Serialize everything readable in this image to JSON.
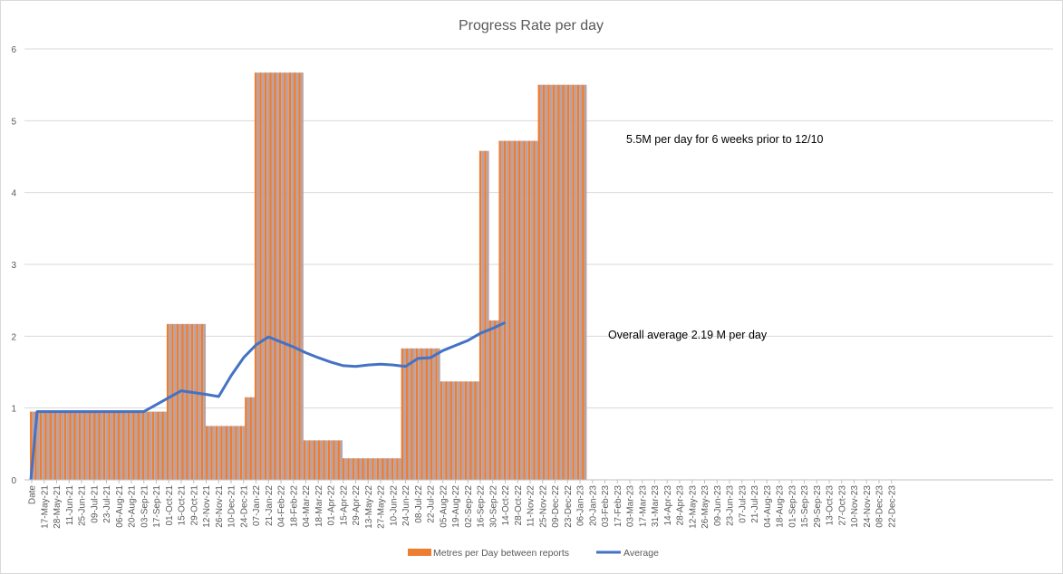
{
  "chart_data": {
    "type": "bar",
    "title": "Progress Rate per day",
    "xlabel": "",
    "ylabel": "",
    "ylim": [
      0,
      6
    ],
    "yticks": [
      0,
      1,
      2,
      3,
      4,
      5,
      6
    ],
    "grid": true,
    "legend_position": "bottom",
    "x_tick_labels": [
      "Date",
      "17-May-21",
      "28-May-21",
      "11-Jun-21",
      "25-Jun-21",
      "09-Jul-21",
      "23-Jul-21",
      "06-Aug-21",
      "20-Aug-21",
      "03-Sep-21",
      "17-Sep-21",
      "01-Oct-21",
      "15-Oct-21",
      "29-Oct-21",
      "12-Nov-21",
      "26-Nov-21",
      "10-Dec-21",
      "24-Dec-21",
      "07-Jan-22",
      "21-Jan-22",
      "04-Feb-22",
      "18-Feb-22",
      "04-Mar-22",
      "18-Mar-22",
      "01-Apr-22",
      "15-Apr-22",
      "29-Apr-22",
      "13-May-22",
      "27-May-22",
      "10-Jun-22",
      "24-Jun-22",
      "08-Jul-22",
      "22-Jul-22",
      "05-Aug-22",
      "19-Aug-22",
      "02-Sep-22",
      "16-Sep-22",
      "30-Sep-22",
      "14-Oct-22",
      "28-Oct-22",
      "11-Nov-22",
      "25-Nov-22",
      "09-Dec-22",
      "23-Dec-22",
      "06-Jan-23",
      "20-Jan-23",
      "03-Feb-23",
      "17-Feb-23",
      "03-Mar-23",
      "17-Mar-23",
      "31-Mar-23",
      "14-Apr-23",
      "28-Apr-23",
      "12-May-23",
      "26-May-23",
      "09-Jun-23",
      "23-Jun-23",
      "07-Jul-23",
      "21-Jul-23",
      "04-Aug-23",
      "18-Aug-23",
      "01-Sep-23",
      "15-Sep-23",
      "29-Sep-23",
      "13-Oct-23",
      "27-Oct-23",
      "10-Nov-23",
      "24-Nov-23",
      "08-Dec-23",
      "22-Dec-23"
    ],
    "series": [
      {
        "name": "Metres per Day between reports",
        "type": "bar",
        "color": "#ED7D31",
        "values": [
          0.95,
          0.95,
          0.95,
          0.95,
          0.95,
          0.95,
          0.95,
          0.95,
          0.95,
          0.95,
          0.95,
          0.95,
          0.95,
          0.95,
          0.95,
          0.95,
          0.95,
          0.95,
          0.95,
          0.95,
          0.95,
          0.95,
          0.95,
          0.95,
          0.95,
          0.95,
          0.95,
          0.95,
          2.17,
          2.17,
          2.17,
          2.17,
          2.17,
          2.17,
          2.17,
          2.17,
          0.75,
          0.75,
          0.75,
          0.75,
          0.75,
          0.75,
          0.75,
          0.75,
          1.15,
          1.15,
          5.67,
          5.67,
          5.67,
          5.67,
          5.67,
          5.67,
          5.67,
          5.67,
          5.67,
          5.67,
          0.55,
          0.55,
          0.55,
          0.55,
          0.55,
          0.55,
          0.55,
          0.55,
          0.3,
          0.3,
          0.3,
          0.3,
          0.3,
          0.3,
          0.3,
          0.3,
          0.3,
          0.3,
          0.3,
          0.3,
          1.83,
          1.83,
          1.83,
          1.83,
          1.83,
          1.83,
          1.83,
          1.83,
          1.37,
          1.37,
          1.37,
          1.37,
          1.37,
          1.37,
          1.37,
          1.37,
          4.58,
          4.58,
          2.22,
          2.22,
          4.72,
          4.72,
          4.72,
          4.72,
          4.72,
          4.72,
          4.72,
          4.72,
          5.5,
          5.5,
          5.5,
          5.5,
          5.5,
          5.5,
          5.5,
          5.5,
          5.5,
          5.5
        ]
      },
      {
        "name": "Average",
        "type": "line",
        "color": "#4472C4",
        "x": [
          "Date",
          "17-May-21",
          "03-Sep-21",
          "15-Oct-21",
          "12-Nov-21",
          "26-Nov-21",
          "10-Dec-21",
          "24-Dec-21",
          "07-Jan-22",
          "21-Jan-22",
          "04-Feb-22",
          "18-Feb-22",
          "04-Mar-22",
          "18-Mar-22",
          "01-Apr-22",
          "15-Apr-22",
          "29-Apr-22",
          "13-May-22",
          "27-May-22",
          "10-Jun-22",
          "24-Jun-22",
          "08-Jul-22",
          "22-Jul-22",
          "05-Aug-22",
          "19-Aug-22",
          "02-Sep-22",
          "16-Sep-22",
          "30-Sep-22",
          "14-Oct-22"
        ],
        "values": [
          0,
          0.95,
          0.95,
          1.24,
          1.19,
          1.16,
          1.45,
          1.7,
          1.88,
          1.99,
          1.92,
          1.85,
          1.77,
          1.7,
          1.64,
          1.59,
          1.58,
          1.6,
          1.61,
          1.6,
          1.58,
          1.69,
          1.7,
          1.8,
          1.87,
          1.94,
          2.04,
          2.11,
          2.19
        ]
      }
    ],
    "annotations": [
      {
        "text": "5.5M per day for 6 weeks prior to 12/10"
      },
      {
        "text": "Overall average 2.19 M per day"
      }
    ]
  }
}
